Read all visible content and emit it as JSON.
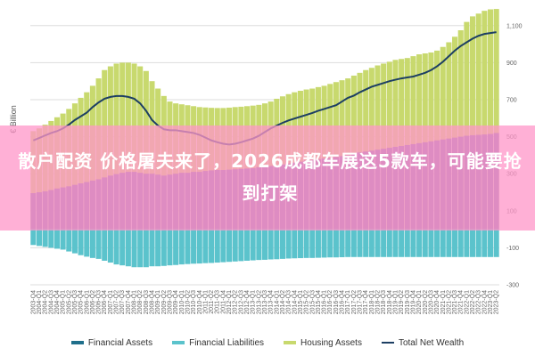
{
  "chart_data": {
    "type": "area",
    "ylabel": "€ Billion",
    "ylim": [
      -300,
      1200
    ],
    "yticks": [
      -300,
      -100,
      100,
      300,
      500,
      700,
      900,
      1100
    ],
    "ytick_labels": [
      "-300",
      "-100",
      "100",
      "300",
      "500",
      "700",
      "900",
      "1,100"
    ],
    "x": [
      "2003-Q4",
      "2004-Q1",
      "2004-Q2",
      "2004-Q3",
      "2004-Q4",
      "2005-Q1",
      "2005-Q2",
      "2005-Q3",
      "2005-Q4",
      "2006-Q1",
      "2006-Q2",
      "2006-Q3",
      "2006-Q4",
      "2007-Q1",
      "2007-Q2",
      "2007-Q3",
      "2007-Q4",
      "2008-Q1",
      "2008-Q2",
      "2008-Q3",
      "2008-Q4",
      "2009-Q1",
      "2009-Q2",
      "2009-Q3",
      "2009-Q4",
      "2010-Q1",
      "2010-Q2",
      "2010-Q3",
      "2010-Q4",
      "2011-Q1",
      "2011-Q2",
      "2011-Q3",
      "2011-Q4",
      "2012-Q1",
      "2012-Q2",
      "2012-Q3",
      "2012-Q4",
      "2013-Q1",
      "2013-Q2",
      "2013-Q3",
      "2013-Q4",
      "2014-Q1",
      "2014-Q2",
      "2014-Q3",
      "2014-Q4",
      "2015-Q1",
      "2015-Q2",
      "2015-Q3",
      "2015-Q4",
      "2016-Q1",
      "2016-Q2",
      "2016-Q3",
      "2016-Q4",
      "2017-Q1",
      "2017-Q2",
      "2017-Q3",
      "2017-Q4",
      "2018-Q1",
      "2018-Q2",
      "2018-Q3",
      "2018-Q4",
      "2019-Q1",
      "2019-Q2",
      "2019-Q3",
      "2019-Q4",
      "2020-Q1",
      "2020-Q2",
      "2020-Q3",
      "2020-Q4",
      "2021-Q1",
      "2021-Q2",
      "2021-Q3",
      "2021-Q4",
      "2022-Q1",
      "2022-Q2",
      "2022-Q3",
      "2022-Q4",
      "2023-Q1",
      "2023-Q2"
    ],
    "series": [
      {
        "name": "Financial Assets",
        "color": "#7b6fb0",
        "values": [
          195,
          200,
          205,
          212,
          220,
          226,
          232,
          240,
          248,
          255,
          263,
          270,
          280,
          290,
          298,
          305,
          310,
          310,
          305,
          300,
          300,
          295,
          290,
          295,
          300,
          305,
          305,
          310,
          310,
          315,
          318,
          320,
          320,
          322,
          324,
          326,
          328,
          330,
          335,
          338,
          342,
          345,
          350,
          355,
          360,
          365,
          370,
          375,
          378,
          382,
          385,
          390,
          395,
          400,
          410,
          415,
          420,
          425,
          430,
          435,
          440,
          445,
          450,
          455,
          460,
          465,
          470,
          475,
          480,
          485,
          490,
          495,
          500,
          505,
          508,
          510,
          512,
          515,
          520
        ]
      },
      {
        "name": "Financial Liabilities",
        "color": "#5bc3cc",
        "values": [
          -85,
          -90,
          -95,
          -100,
          -105,
          -110,
          -120,
          -130,
          -140,
          -148,
          -155,
          -160,
          -170,
          -180,
          -190,
          -195,
          -200,
          -205,
          -205,
          -205,
          -200,
          -200,
          -198,
          -195,
          -193,
          -190,
          -188,
          -186,
          -185,
          -183,
          -182,
          -180,
          -178,
          -176,
          -174,
          -172,
          -170,
          -168,
          -166,
          -165,
          -163,
          -162,
          -160,
          -158,
          -157,
          -156,
          -155,
          -155,
          -154,
          -153,
          -152,
          -152,
          -151,
          -150,
          -150,
          -150,
          -150,
          -150,
          -150,
          -150,
          -150,
          -150,
          -150,
          -150,
          -150,
          -150,
          -150,
          -150,
          -150,
          -150,
          -150,
          -150,
          -150,
          -150,
          -150,
          -150,
          -150,
          -150,
          -150
        ]
      },
      {
        "name": "Housing Assets",
        "color": "#c8d96e",
        "values": [
          530,
          545,
          565,
          585,
          605,
          625,
          650,
          680,
          710,
          740,
          775,
          815,
          860,
          880,
          895,
          900,
          900,
          895,
          880,
          855,
          800,
          760,
          720,
          690,
          680,
          675,
          670,
          665,
          660,
          658,
          656,
          655,
          655,
          657,
          660,
          662,
          665,
          668,
          672,
          680,
          690,
          705,
          718,
          730,
          740,
          748,
          755,
          760,
          768,
          775,
          785,
          795,
          805,
          815,
          830,
          845,
          860,
          872,
          885,
          895,
          905,
          915,
          920,
          925,
          935,
          945,
          950,
          955,
          965,
          985,
          1010,
          1040,
          1075,
          1120,
          1150,
          1165,
          1180,
          1188,
          1190
        ]
      },
      {
        "name": "Total Net Wealth",
        "color": "#1d3f63",
        "values": [
          480,
          493,
          507,
          520,
          530,
          545,
          565,
          590,
          610,
          630,
          660,
          685,
          705,
          715,
          720,
          720,
          715,
          705,
          680,
          640,
          590,
          560,
          540,
          535,
          535,
          530,
          525,
          520,
          510,
          495,
          480,
          470,
          462,
          458,
          462,
          470,
          480,
          490,
          505,
          525,
          545,
          560,
          575,
          588,
          598,
          608,
          618,
          628,
          640,
          650,
          660,
          670,
          690,
          710,
          722,
          740,
          755,
          770,
          780,
          790,
          800,
          808,
          815,
          820,
          825,
          835,
          845,
          860,
          880,
          905,
          935,
          965,
          990,
          1010,
          1030,
          1045,
          1055,
          1060,
          1065
        ]
      }
    ],
    "grid": true,
    "legend_placement": "bottom"
  },
  "overlay": {
    "headline": "散户配资 价格屠夫来了，2026成都车展这5款车，可能要抢到打架"
  }
}
